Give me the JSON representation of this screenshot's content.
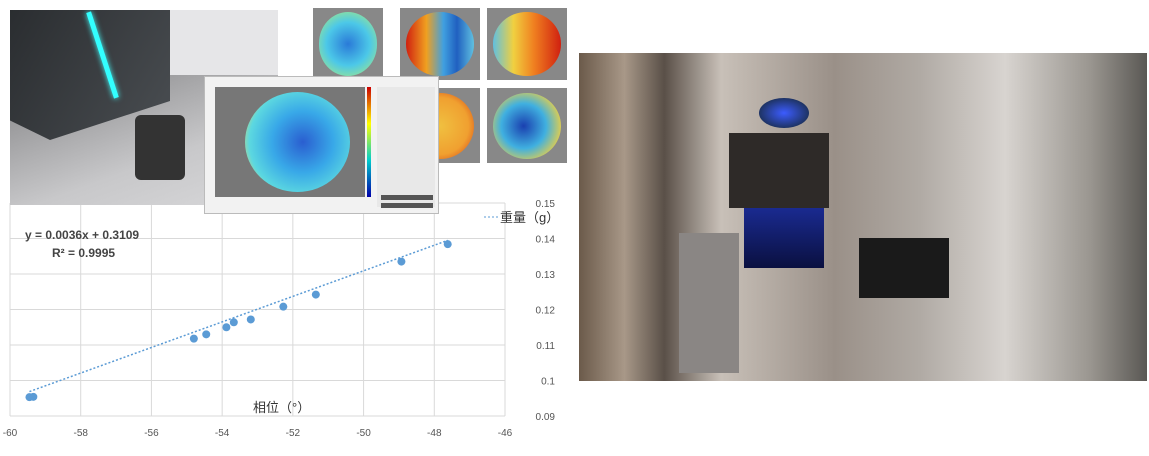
{
  "chart_data": {
    "type": "scatter",
    "xlabel": "相位（°）",
    "ylabel": "",
    "legend": "重量（g）",
    "legend_position": "top-right",
    "equation": "y = 0.0036x + 0.3109",
    "r_squared": "R² = 0.9995",
    "trendline": {
      "slope": 0.0036,
      "intercept": 0.3109,
      "style": "dotted"
    },
    "xlim": [
      -60,
      -46
    ],
    "ylim": [
      0.09,
      0.15
    ],
    "x_ticks": [
      "-60",
      "-58",
      "-56",
      "-54",
      "-52",
      "-50",
      "-48",
      "-46"
    ],
    "y_ticks": [
      "0.09",
      "0.1",
      "0.11",
      "0.12",
      "0.13",
      "0.14",
      "0.15"
    ],
    "grid": true,
    "color": "#5b9bd5",
    "points": [
      {
        "x": -59.45,
        "y": 0.0953
      },
      {
        "x": -59.34,
        "y": 0.0954
      },
      {
        "x": -54.8,
        "y": 0.1118
      },
      {
        "x": -54.45,
        "y": 0.113
      },
      {
        "x": -53.88,
        "y": 0.115
      },
      {
        "x": -53.67,
        "y": 0.1164
      },
      {
        "x": -53.19,
        "y": 0.1172
      },
      {
        "x": -52.27,
        "y": 0.1208
      },
      {
        "x": -51.35,
        "y": 0.1242
      },
      {
        "x": -48.93,
        "y": 0.1335
      },
      {
        "x": -47.62,
        "y": 0.1384
      }
    ]
  }
}
